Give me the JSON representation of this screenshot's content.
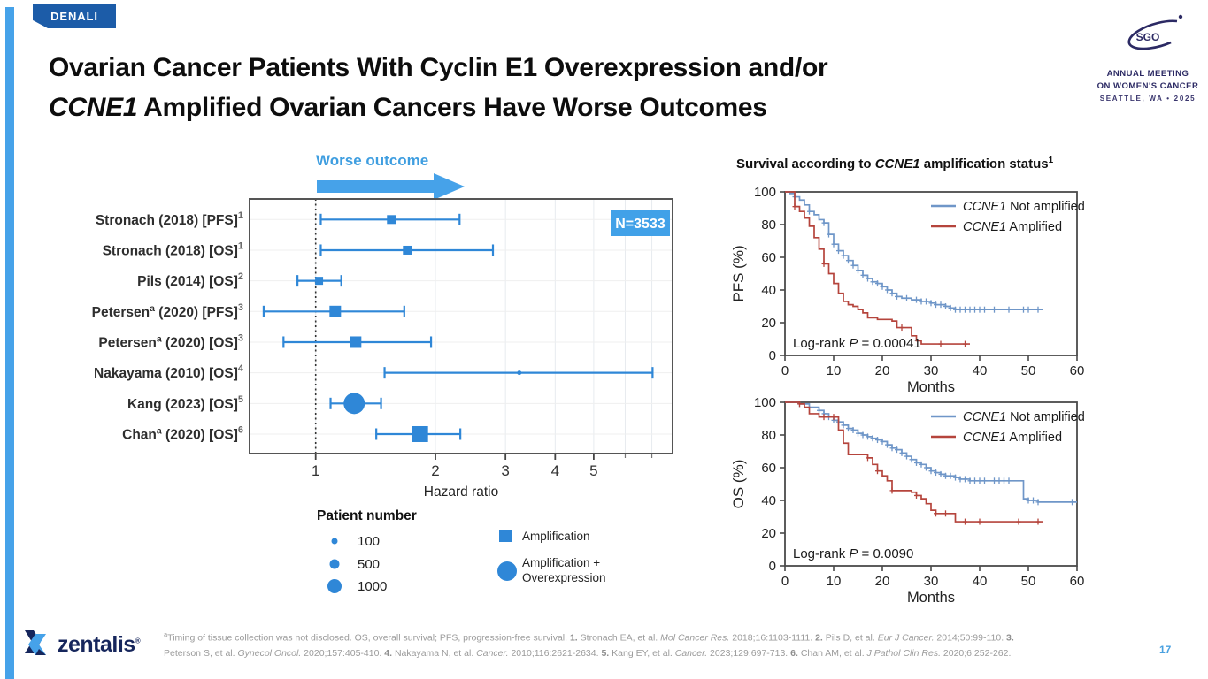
{
  "slide": {
    "tab_label": "DENALI",
    "title_line1": "Ovarian Cancer Patients With Cyclin E1 Overexpression and/or",
    "title_line2_segments": [
      {
        "t": "CCNE1",
        "s": "i"
      },
      {
        "t": " Amplified Ovarian Cancers Have Worse Outcomes",
        "s": "n"
      }
    ],
    "page_number": "17"
  },
  "logos": {
    "sgo": {
      "center": "SGO",
      "line1": "ANNUAL MEETING",
      "line2": "ON WOMEN'S CANCER",
      "line3": "SEATTLE, WA • 2025"
    },
    "zentalis_wordmark": "zentalis",
    "zentalis_reg_mark": "®"
  },
  "colors": {
    "accent_blue": "#46a2e9",
    "denali_blue": "#1c5ca8",
    "forest_blue": "#2f87d7",
    "badge_blue": "#41a1e8",
    "km_blue": "#6f96c8",
    "km_red": "#b5443c",
    "navy": "#2c2a64",
    "zentalis_navy": "#16265c",
    "footer_gray": "#9b9b9b",
    "page_number_blue": "#4aa1e0"
  },
  "right_panel": {
    "heading_segments": [
      {
        "t": "Survival according to ",
        "s": "n"
      },
      {
        "t": "CCNE1",
        "s": "i"
      },
      {
        "t": " amplification status",
        "s": "n"
      },
      {
        "t": "1",
        "s": "sup"
      }
    ]
  },
  "footnote": {
    "line1": [
      {
        "t": "a",
        "s": "sup"
      },
      {
        "t": "Timing of tissue collection was not disclosed. OS, overall survival; PFS, progression-free survival. ",
        "s": "n"
      },
      {
        "t": "1.",
        "s": "b"
      },
      {
        "t": " Stronach EA, et al. ",
        "s": "n"
      },
      {
        "t": "Mol Cancer Res.",
        "s": "i"
      },
      {
        "t": " 2018;16:1103-1111. ",
        "s": "n"
      },
      {
        "t": "2.",
        "s": "b"
      },
      {
        "t": " Pils D, et al. ",
        "s": "n"
      },
      {
        "t": "Eur J Cancer.",
        "s": "i"
      },
      {
        "t": " 2014;50:99-110. ",
        "s": "n"
      },
      {
        "t": "3.",
        "s": "b"
      }
    ],
    "line2": [
      {
        "t": "Peterson S, et al. ",
        "s": "n"
      },
      {
        "t": "Gynecol Oncol.",
        "s": "i"
      },
      {
        "t": " 2020;157:405-410. ",
        "s": "n"
      },
      {
        "t": "4.",
        "s": "b"
      },
      {
        "t": " Nakayama N, et al. ",
        "s": "n"
      },
      {
        "t": "Cancer.",
        "s": "i"
      },
      {
        "t": " 2010;116:2621-2634. ",
        "s": "n"
      },
      {
        "t": "5.",
        "s": "b"
      },
      {
        "t": " Kang EY, et al. ",
        "s": "n"
      },
      {
        "t": "Cancer.",
        "s": "i"
      },
      {
        "t": " 2023;129:697-713. ",
        "s": "n"
      },
      {
        "t": "6.",
        "s": "b"
      },
      {
        "t": " Chan AM, et al. ",
        "s": "n"
      },
      {
        "t": "J Pathol Clin Res.",
        "s": "i"
      },
      {
        "t": " 2020;6:252-262.",
        "s": "n"
      }
    ]
  },
  "chart_data": [
    {
      "type": "scatter",
      "subtype": "forest_plot",
      "arrow_label": "Worse outcome",
      "badge": "N=3533",
      "xlabel": "Hazard ratio",
      "x_scale": "log",
      "x_ticks": [
        1,
        2,
        3,
        4,
        5
      ],
      "x_minor_ticks": [
        6,
        7
      ],
      "xlim": [
        0.68,
        7.9
      ],
      "ref_line": 1,
      "rows": [
        {
          "study": "Stronach (2018) [PFS]",
          "ref": "1",
          "hr": 1.55,
          "ci": [
            1.03,
            2.3
          ],
          "marker": "square",
          "size": 10
        },
        {
          "study": "Stronach (2018) [OS]",
          "ref": "1",
          "hr": 1.7,
          "ci": [
            1.03,
            2.79
          ],
          "marker": "square",
          "size": 10
        },
        {
          "study": "Pils (2014) [OS]",
          "ref": "2",
          "hr": 1.02,
          "ci": [
            0.9,
            1.16
          ],
          "marker": "square",
          "size": 9
        },
        {
          "study": "Petersen|a| (2020) [PFS]",
          "ref": "3",
          "hr": 1.12,
          "ci": [
            0.74,
            1.67
          ],
          "marker": "square",
          "size": 13
        },
        {
          "study": "Petersen|a| (2020) [OS]",
          "ref": "3",
          "hr": 1.26,
          "ci": [
            0.83,
            1.95
          ],
          "marker": "square",
          "size": 13
        },
        {
          "study": "Nakayama (2010) [OS]",
          "ref": "4",
          "hr": 3.25,
          "ci": [
            1.49,
            7.03
          ],
          "marker": "dot",
          "size": 5
        },
        {
          "study": "Kang (2023) [OS]",
          "ref": "5",
          "hr": 1.25,
          "ci": [
            1.09,
            1.46
          ],
          "marker": "circle",
          "size": 24
        },
        {
          "study": "Chan|a| (2020) [OS]",
          "ref": "6",
          "hr": 1.83,
          "ci": [
            1.42,
            2.31
          ],
          "marker": "square",
          "size": 18
        }
      ],
      "size_legend": {
        "title": "Patient number",
        "items": [
          {
            "label": "100",
            "r": 3.5
          },
          {
            "label": "500",
            "r": 5.5
          },
          {
            "label": "1000",
            "r": 8
          }
        ]
      },
      "marker_legend": [
        {
          "shape": "square",
          "label_lines": [
            "Amplification"
          ]
        },
        {
          "shape": "circle",
          "label_lines": [
            "Amplification +",
            "Overexpression"
          ]
        }
      ]
    },
    {
      "type": "line",
      "subtype": "km_step",
      "ylabel": "PFS (%)",
      "xlabel": "Months",
      "xticks": [
        0,
        10,
        20,
        30,
        40,
        50,
        60
      ],
      "yticks": [
        0,
        20,
        40,
        60,
        80,
        100
      ],
      "xlim": [
        0,
        60
      ],
      "ylim": [
        0,
        100
      ],
      "annotation": "Log-rank |P| = 0.00041",
      "legend_position": "top-right",
      "series": [
        {
          "name": "|CCNE1| Not amplified",
          "color": "#6f96c8",
          "points": [
            [
              0,
              100
            ],
            [
              1,
              99
            ],
            [
              2,
              97
            ],
            [
              3,
              95
            ],
            [
              4,
              92
            ],
            [
              5,
              88
            ],
            [
              6,
              86
            ],
            [
              7,
              83
            ],
            [
              8,
              81
            ],
            [
              9,
              74
            ],
            [
              10,
              68
            ],
            [
              11,
              64
            ],
            [
              12,
              61
            ],
            [
              13,
              58
            ],
            [
              14,
              55
            ],
            [
              15,
              52
            ],
            [
              16,
              49
            ],
            [
              17,
              47
            ],
            [
              18,
              45
            ],
            [
              19,
              44
            ],
            [
              20,
              42
            ],
            [
              21,
              40
            ],
            [
              22,
              38
            ],
            [
              23,
              36
            ],
            [
              24,
              35
            ],
            [
              26,
              34
            ],
            [
              28,
              33
            ],
            [
              30,
              32
            ],
            [
              31,
              31
            ],
            [
              33,
              30
            ],
            [
              34,
              29
            ],
            [
              35,
              28
            ],
            [
              53,
              28
            ]
          ],
          "censors": [
            2,
            5,
            8,
            9,
            10,
            11,
            12,
            13,
            14,
            15,
            16,
            17,
            18,
            19,
            20,
            21,
            22,
            23,
            25,
            27,
            28,
            29,
            30,
            31,
            32,
            33,
            34,
            35,
            36,
            37,
            38,
            39,
            40,
            41,
            43,
            46,
            49,
            50,
            52
          ]
        },
        {
          "name": "|CCNE1| Amplified",
          "color": "#b5443c",
          "points": [
            [
              0,
              100
            ],
            [
              2,
              91
            ],
            [
              3,
              88
            ],
            [
              4,
              84
            ],
            [
              5,
              79
            ],
            [
              6,
              72
            ],
            [
              7,
              65
            ],
            [
              8,
              56
            ],
            [
              9,
              50
            ],
            [
              10,
              44
            ],
            [
              11,
              38
            ],
            [
              12,
              33
            ],
            [
              13,
              31
            ],
            [
              14,
              30
            ],
            [
              15,
              28
            ],
            [
              16,
              26
            ],
            [
              17,
              23
            ],
            [
              19,
              22
            ],
            [
              22,
              21
            ],
            [
              23,
              17
            ],
            [
              26,
              12
            ],
            [
              27,
              9
            ],
            [
              28,
              7
            ],
            [
              38,
              7
            ]
          ],
          "censors": [
            2,
            8,
            24,
            32,
            37
          ]
        }
      ]
    },
    {
      "type": "line",
      "subtype": "km_step",
      "ylabel": "OS (%)",
      "xlabel": "Months",
      "xticks": [
        0,
        10,
        20,
        30,
        40,
        50,
        60
      ],
      "yticks": [
        0,
        20,
        40,
        60,
        80,
        100
      ],
      "xlim": [
        0,
        60
      ],
      "ylim": [
        0,
        100
      ],
      "annotation": "Log-rank |P| = 0.0090",
      "legend_position": "top-right",
      "series": [
        {
          "name": "|CCNE1| Not amplified",
          "color": "#6f96c8",
          "points": [
            [
              0,
              100
            ],
            [
              3,
              99
            ],
            [
              5,
              97
            ],
            [
              7,
              95
            ],
            [
              8,
              93
            ],
            [
              9,
              91
            ],
            [
              10,
              89
            ],
            [
              11,
              88
            ],
            [
              12,
              86
            ],
            [
              13,
              84
            ],
            [
              14,
              83
            ],
            [
              15,
              81
            ],
            [
              16,
              80
            ],
            [
              17,
              79
            ],
            [
              18,
              78
            ],
            [
              19,
              77
            ],
            [
              20,
              76
            ],
            [
              21,
              74
            ],
            [
              22,
              72
            ],
            [
              23,
              71
            ],
            [
              24,
              69
            ],
            [
              25,
              67
            ],
            [
              26,
              65
            ],
            [
              27,
              63
            ],
            [
              28,
              62
            ],
            [
              29,
              60
            ],
            [
              30,
              58
            ],
            [
              31,
              57
            ],
            [
              32,
              56
            ],
            [
              33,
              55
            ],
            [
              35,
              54
            ],
            [
              36,
              53
            ],
            [
              38,
              52
            ],
            [
              48,
              52
            ],
            [
              49,
              41
            ],
            [
              50,
              40
            ],
            [
              52,
              39
            ],
            [
              60,
              39
            ]
          ],
          "censors": [
            3,
            7,
            8,
            9,
            10,
            11,
            12,
            13,
            14,
            15,
            16,
            17,
            18,
            19,
            20,
            21,
            22,
            23,
            24,
            25,
            26,
            27,
            28,
            29,
            30,
            31,
            32,
            33,
            34,
            35,
            36,
            37,
            38,
            39,
            40,
            41,
            43,
            44,
            45,
            46,
            50,
            51,
            52,
            59
          ]
        },
        {
          "name": "|CCNE1| Amplified",
          "color": "#b5443c",
          "points": [
            [
              0,
              100
            ],
            [
              3,
              99
            ],
            [
              4,
              97
            ],
            [
              5,
              93
            ],
            [
              7,
              91
            ],
            [
              10,
              91
            ],
            [
              11,
              83
            ],
            [
              12,
              75
            ],
            [
              13,
              68
            ],
            [
              16,
              68
            ],
            [
              17,
              66
            ],
            [
              18,
              62
            ],
            [
              19,
              58
            ],
            [
              20,
              55
            ],
            [
              21,
              52
            ],
            [
              22,
              46
            ],
            [
              25,
              46
            ],
            [
              26,
              45
            ],
            [
              27,
              43
            ],
            [
              28,
              41
            ],
            [
              29,
              38
            ],
            [
              30,
              34
            ],
            [
              31,
              32
            ],
            [
              34,
              32
            ],
            [
              35,
              27
            ],
            [
              53,
              27
            ]
          ],
          "censors": [
            3,
            8,
            10,
            17,
            19,
            22,
            27,
            31,
            33,
            37,
            40,
            48,
            52
          ]
        }
      ]
    }
  ]
}
